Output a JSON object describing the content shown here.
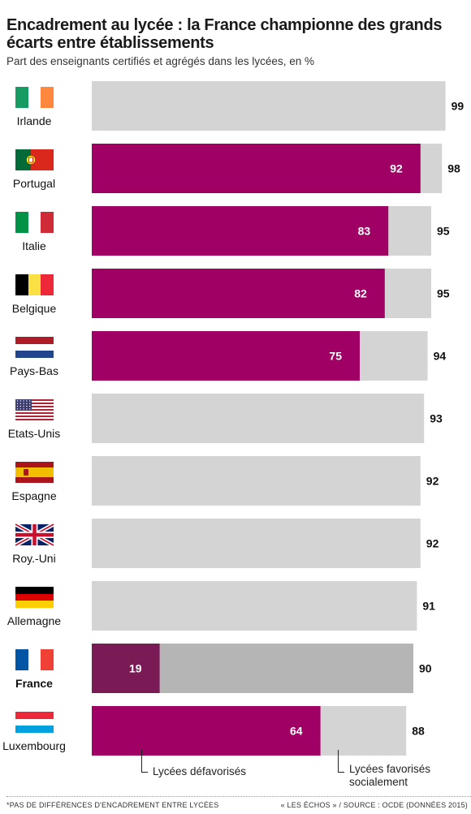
{
  "title": "Encadrement au lycée : la France championne des grands écarts entre établissements",
  "subtitle": "Part des enseignants certifiés et agrégés dans les lycées, en %",
  "legend": {
    "disadvantaged": "Lycées défavorisés",
    "advantaged_line1": "Lycées favorisés",
    "advantaged_line2": "socialement"
  },
  "footer": {
    "note": "*PAS DE DIFFÉRENCES D'ENCADREMENT ENTRE LYCÉES",
    "source": "« LES ÉCHOS » / SOURCE : OCDE (DONNÉES 2015)"
  },
  "colors": {
    "disadvantaged": "#a00064",
    "disadvantaged_france": "#7b1b55",
    "advantaged": "#d4d4d4",
    "advantaged_france": "#b5b5b5"
  },
  "chart_data": {
    "type": "bar",
    "orientation": "horizontal",
    "categories": [
      "Irlande",
      "Portugal",
      "Italie",
      "Belgique",
      "Pays-Bas",
      "Etats-Unis",
      "Espagne",
      "Roy.-Uni",
      "Allemagne",
      "France",
      "Luxembourg"
    ],
    "flags": [
      "ireland-flag-icon",
      "portugal-flag-icon",
      "italy-flag-icon",
      "belgium-flag-icon",
      "netherlands-flag-icon",
      "usa-flag-icon",
      "spain-flag-icon",
      "uk-flag-icon",
      "germany-flag-icon",
      "france-flag-icon",
      "luxembourg-flag-icon"
    ],
    "highlight": "France",
    "series": [
      {
        "name": "Lycées défavorisés",
        "values": [
          null,
          92,
          83,
          82,
          75,
          null,
          null,
          null,
          null,
          19,
          64
        ]
      },
      {
        "name": "Lycées favorisés socialement",
        "values": [
          99,
          98,
          95,
          95,
          94,
          93,
          92,
          92,
          91,
          90,
          88
        ]
      }
    ]
  }
}
